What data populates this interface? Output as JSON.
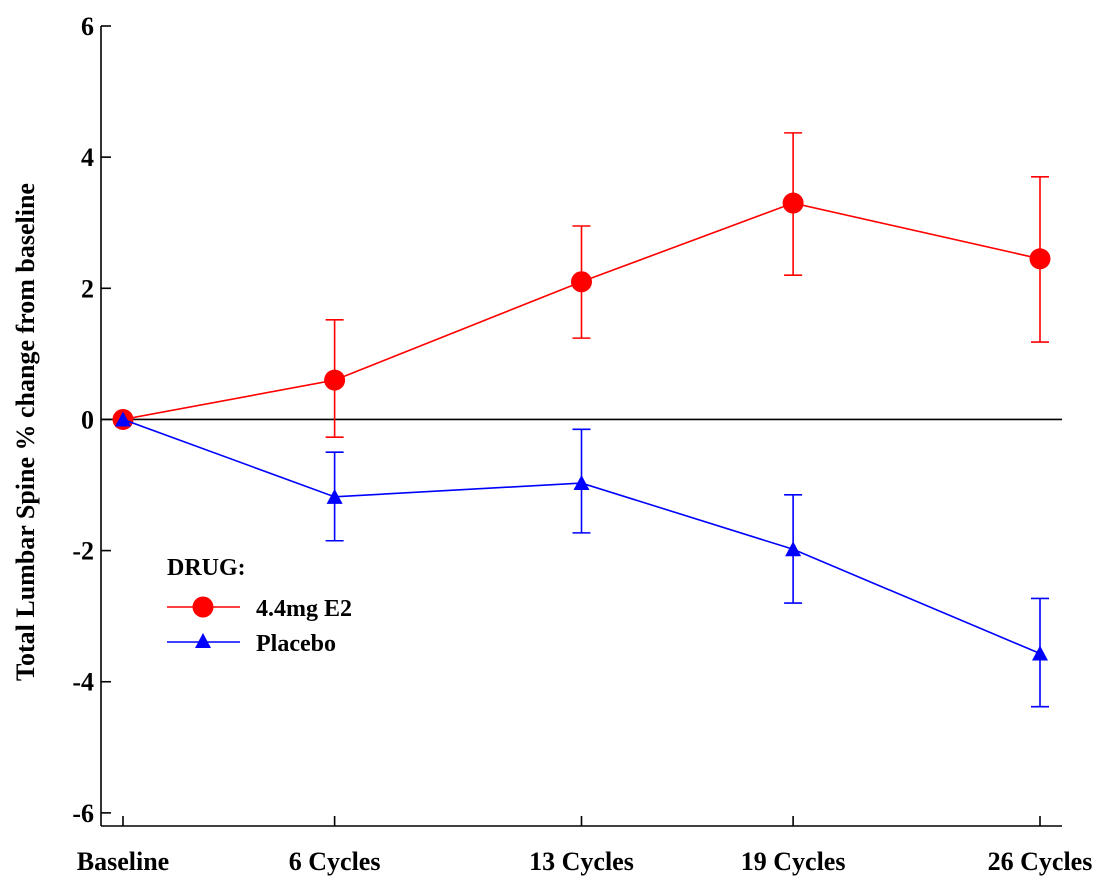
{
  "chart_data": {
    "type": "line",
    "title": "",
    "xlabel": "",
    "ylabel": "Total Lumbar Spine % change from baseline",
    "categories": [
      "Baseline",
      "6 Cycles",
      "13 Cycles",
      "19 Cycles",
      "26 Cycles"
    ],
    "x_positions": [
      0,
      6,
      13,
      19,
      26
    ],
    "ylim": [
      -6.2,
      6
    ],
    "yticks": [
      6,
      4,
      2,
      0,
      -2,
      -4,
      -6
    ],
    "ytick_labels": [
      "6",
      "4",
      "2",
      "0",
      "-2",
      "-4",
      "-6"
    ],
    "zero_line": true,
    "grid": false,
    "legend": {
      "title": "DRUG:",
      "placement": "lower-left"
    },
    "series": [
      {
        "name": "4.4mg E2",
        "color": "#ff0000",
        "marker": "circle",
        "values": [
          0,
          0.6,
          2.1,
          3.3,
          2.45
        ],
        "error_low": [
          0,
          -0.27,
          1.24,
          2.2,
          1.18
        ],
        "error_high": [
          0,
          1.52,
          2.95,
          4.37,
          3.7
        ]
      },
      {
        "name": "Placebo",
        "color": "#0000ff",
        "marker": "triangle",
        "values": [
          0,
          -1.18,
          -0.97,
          -1.98,
          -3.57
        ],
        "error_low": [
          0,
          -1.85,
          -1.73,
          -2.8,
          -4.38
        ],
        "error_high": [
          0,
          -0.5,
          -0.15,
          -1.15,
          -2.73
        ]
      }
    ]
  }
}
